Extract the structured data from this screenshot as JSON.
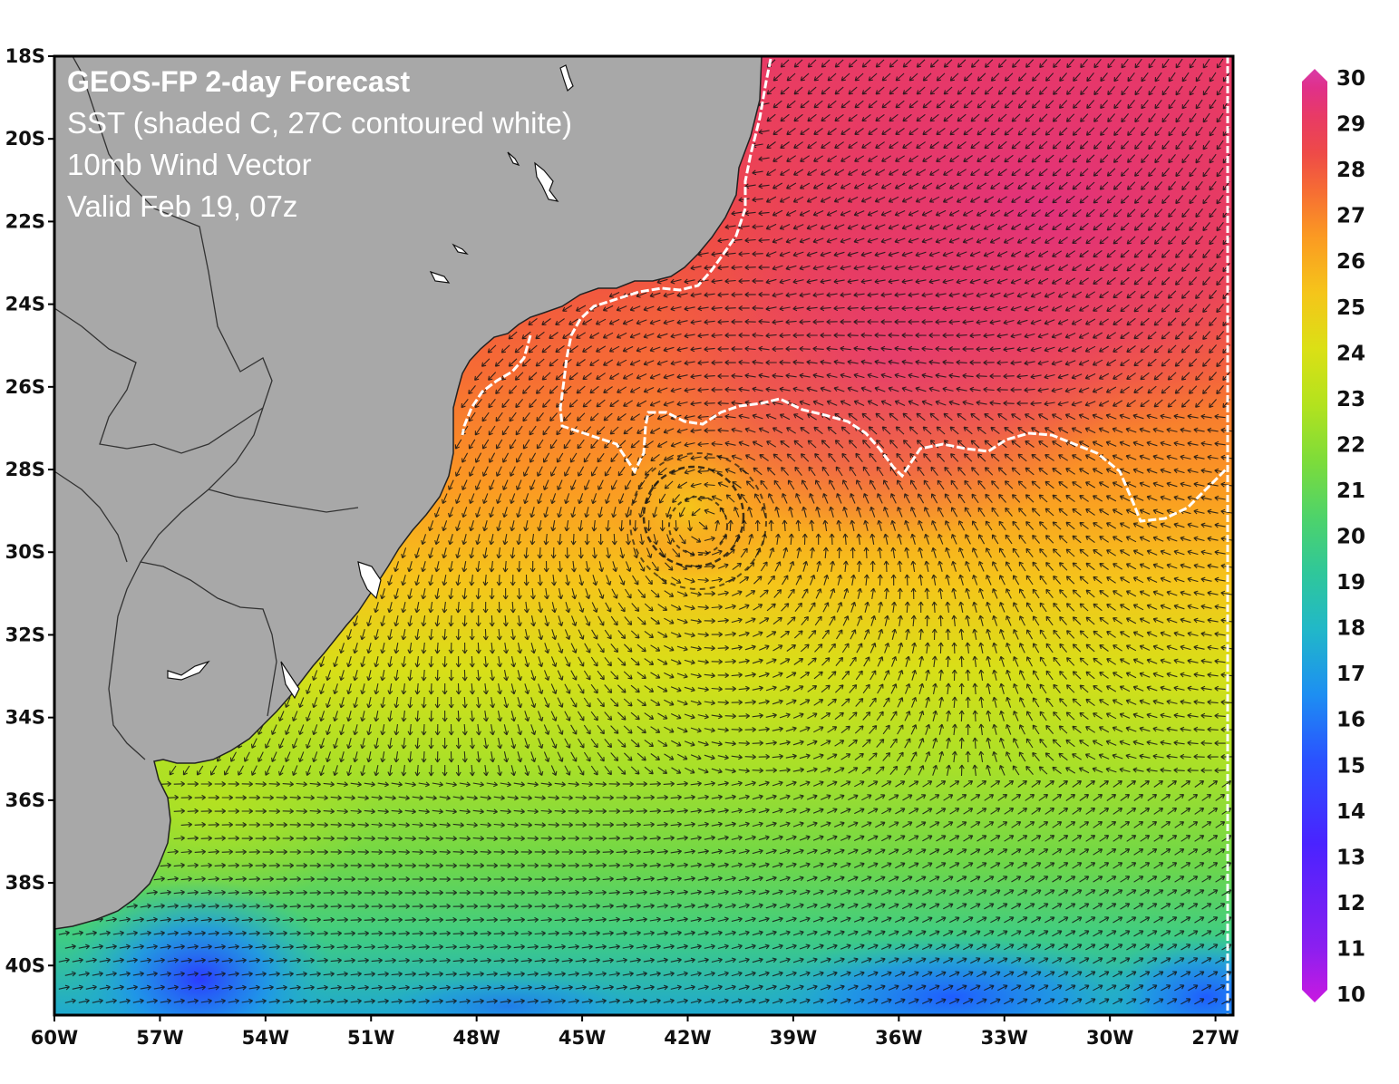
{
  "title": {
    "line1": "GEOS-FP 2-day Forecast",
    "line2": "SST (shaded C, 27C contoured white)",
    "line3": "10mb Wind Vector",
    "line4": "Valid Feb 19, 07z"
  },
  "map": {
    "lon_range": [
      -60,
      -26.5
    ],
    "lat_range": [
      -41.2,
      -18
    ],
    "lat_ticks": [
      "18S",
      "20S",
      "22S",
      "24S",
      "26S",
      "28S",
      "30S",
      "32S",
      "34S",
      "36S",
      "38S",
      "40S"
    ],
    "lon_ticks": [
      "60W",
      "57W",
      "54W",
      "51W",
      "48W",
      "45W",
      "42W",
      "39W",
      "36W",
      "33W",
      "30W",
      "27W"
    ],
    "land_color": "#a8a8a8",
    "storm_center": {
      "lon": -41.5,
      "lat": -29.3
    }
  },
  "colorbar": {
    "min": 10,
    "max": 30,
    "labels": [
      "30",
      "29",
      "28",
      "27",
      "26",
      "25",
      "24",
      "23",
      "22",
      "21",
      "20",
      "19",
      "18",
      "17",
      "16",
      "15",
      "14",
      "13",
      "12",
      "11",
      "10"
    ],
    "colors": [
      "#b21bd8",
      "#8a1ff0",
      "#4a23ff",
      "#2a52ff",
      "#1d8ff2",
      "#21b8c8",
      "#2fc79a",
      "#4ed36a",
      "#7ddc3a",
      "#b3e21e",
      "#dbe015",
      "#f5c51a",
      "#fb9a22",
      "#f66c34",
      "#ee4a48",
      "#e83a66",
      "#e0308a",
      "#d93aa8"
    ]
  }
}
